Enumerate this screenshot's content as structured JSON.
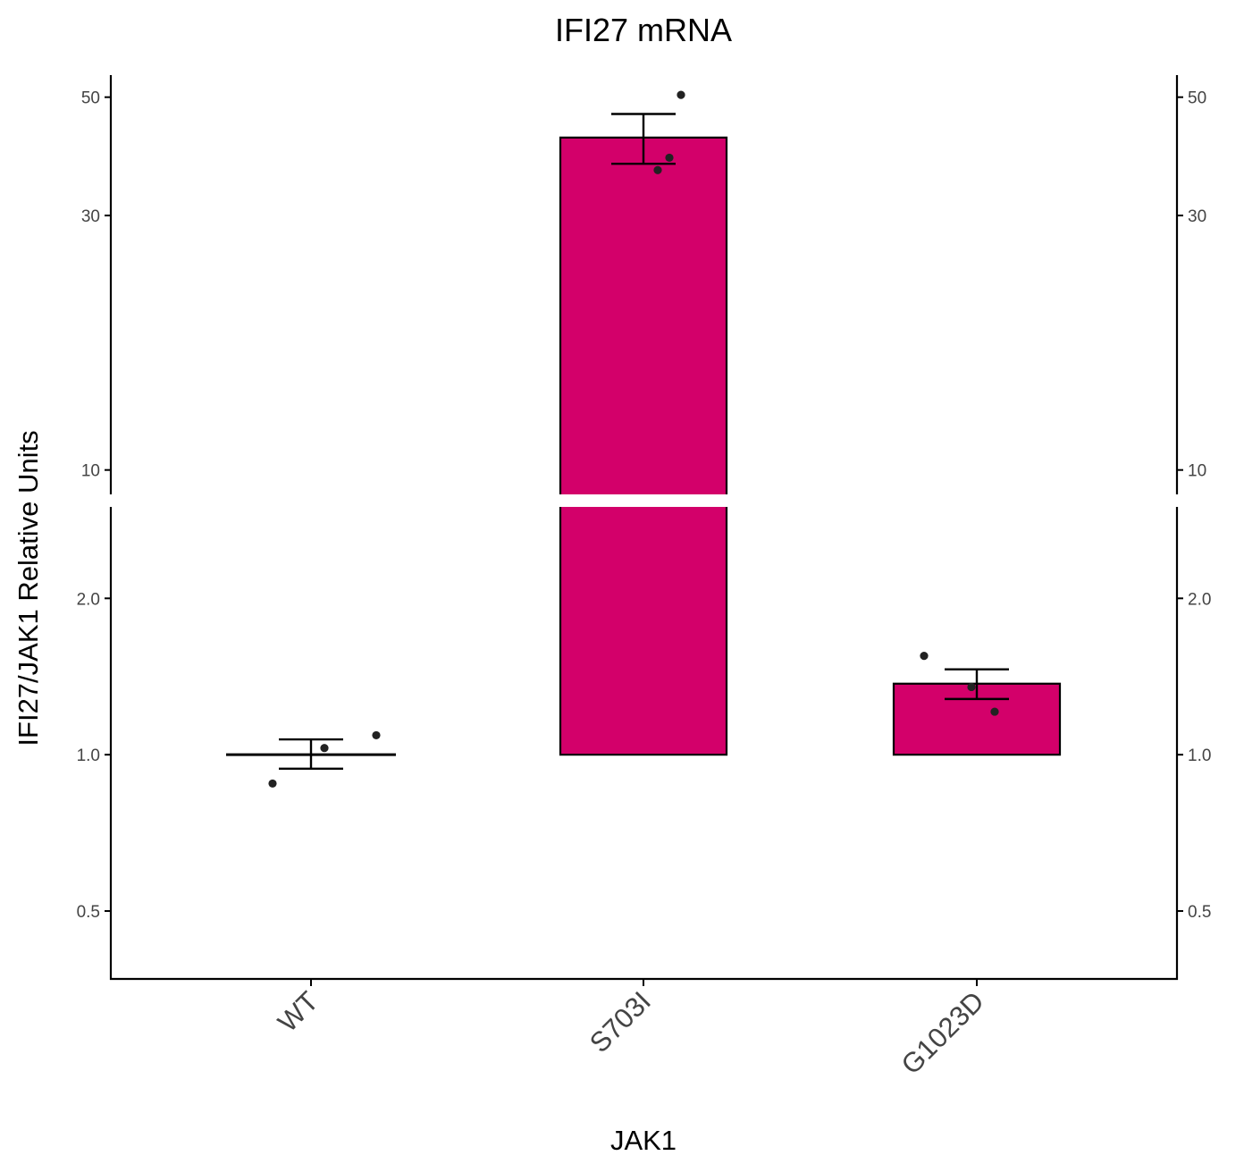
{
  "chart_data": {
    "type": "bar",
    "title": "IFI27 mRNA",
    "xlabel": "JAK1",
    "ylabel": "IFI27/JAK1 Relative Units",
    "categories": [
      "WT",
      "S703I",
      "G1023D"
    ],
    "values": [
      1.0,
      42.0,
      1.37
    ],
    "error": {
      "lower": [
        0.94,
        37.5,
        1.28
      ],
      "upper": [
        1.07,
        46.5,
        1.46
      ]
    },
    "points": [
      [
        0.88,
        1.03,
        1.09
      ],
      [
        50.5,
        38.5,
        36.5
      ],
      [
        1.55,
        1.35,
        1.21
      ]
    ],
    "baseline": 1.0,
    "scale": "log",
    "axis_break": {
      "lower_max": 3.0,
      "upper_min": 9.0
    },
    "ylim": [
      0.37,
      55
    ],
    "yticks": {
      "lower": [
        0.5,
        1.0,
        2.0
      ],
      "upper": [
        10,
        30,
        50
      ]
    },
    "ytick_labels": {
      "lower": [
        "0.5",
        "1.0",
        "2.0"
      ],
      "upper": [
        "10",
        "30",
        "50"
      ]
    },
    "secondary_y_axis": true,
    "grid": false,
    "legend": "none",
    "colors": {
      "bar_fill": "#D3006A",
      "bar_edge": "#000000",
      "point": "#222222",
      "error_bar": "#000000"
    }
  }
}
